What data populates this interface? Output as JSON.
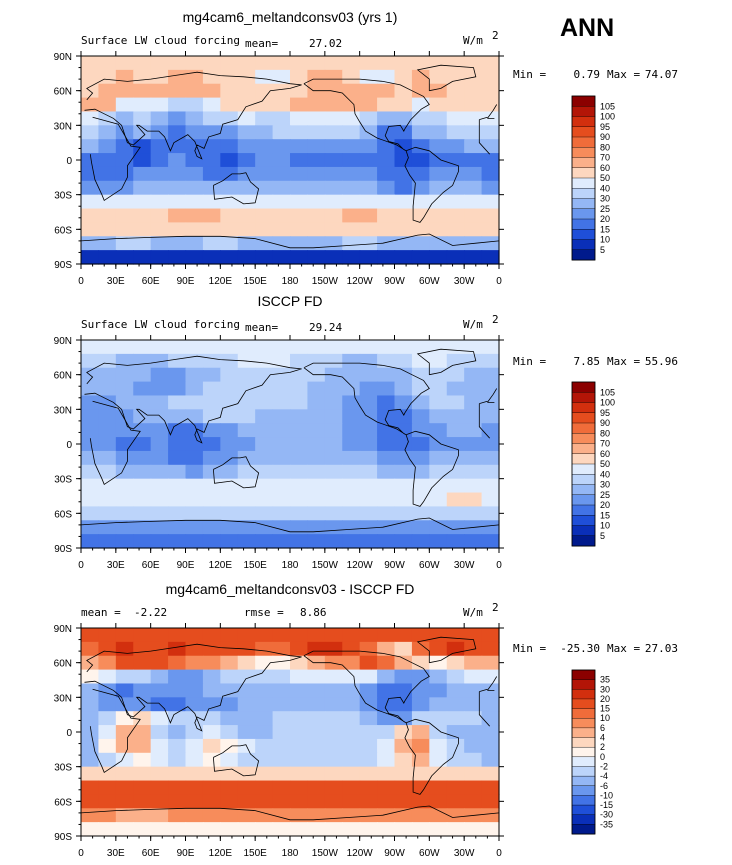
{
  "season_label": "ANN",
  "chart_data": [
    {
      "type": "heatmap",
      "title": "mg4cam6_meltandconsv03 (yrs 1)",
      "subtitle": "Surface LW cloud forcing",
      "mean_label": "mean=",
      "mean": "27.02",
      "units": "W/m",
      "units_exp": "2",
      "min_label": "Min =",
      "min": "0.79",
      "max_label": "Max =",
      "max": "74.07",
      "xticks": [
        "0",
        "30E",
        "60E",
        "90E",
        "120E",
        "150E",
        "180",
        "150W",
        "120W",
        "90W",
        "60W",
        "30W",
        "0"
      ],
      "yticks": [
        "90N",
        "60N",
        "30N",
        "0",
        "30S",
        "60S",
        "90S"
      ],
      "xlim": [
        0,
        360
      ],
      "ylim": [
        -90,
        90
      ],
      "levels": [
        "105",
        "100",
        "95",
        "90",
        "80",
        "70",
        "60",
        "50",
        "40",
        "30",
        "25",
        "20",
        "15",
        "10",
        "5"
      ],
      "colors": [
        "#8b0000",
        "#b31507",
        "#d22f0e",
        "#e54d1e",
        "#f06c3a",
        "#f78c5b",
        "#fbb08a",
        "#fdd7bf",
        "#e0ecfd",
        "#bcd4fa",
        "#94b7f5",
        "#6a97ee",
        "#4273e6",
        "#1f4fd8",
        "#0a2fb8",
        "#001a8c"
      ],
      "field": [
        [
          7,
          7,
          7,
          7,
          7,
          7,
          7,
          7,
          7,
          7,
          7,
          7,
          7,
          7,
          7,
          7,
          7,
          7,
          7,
          7,
          7,
          7,
          7,
          7
        ],
        [
          7,
          7,
          6,
          7,
          7,
          6,
          6,
          7,
          7,
          7,
          8,
          8,
          7,
          6,
          6,
          7,
          8,
          8,
          7,
          6,
          7,
          7,
          7,
          7
        ],
        [
          7,
          6,
          6,
          6,
          6,
          6,
          6,
          6,
          7,
          7,
          7,
          7,
          7,
          6,
          6,
          6,
          6,
          6,
          7,
          6,
          6,
          7,
          7,
          7
        ],
        [
          6,
          6,
          8,
          8,
          8,
          9,
          9,
          8,
          7,
          7,
          7,
          7,
          6,
          6,
          6,
          6,
          6,
          7,
          7,
          8,
          7,
          7,
          7,
          7
        ],
        [
          8,
          9,
          10,
          9,
          10,
          11,
          10,
          9,
          9,
          8,
          9,
          9,
          8,
          8,
          8,
          8,
          9,
          10,
          10,
          9,
          9,
          8,
          8,
          8
        ],
        [
          9,
          10,
          11,
          10,
          11,
          12,
          11,
          11,
          11,
          10,
          10,
          9,
          9,
          9,
          9,
          9,
          10,
          12,
          12,
          10,
          10,
          9,
          9,
          9
        ],
        [
          10,
          11,
          12,
          13,
          12,
          12,
          12,
          12,
          12,
          11,
          11,
          11,
          11,
          11,
          11,
          11,
          11,
          12,
          13,
          12,
          11,
          11,
          10,
          10
        ],
        [
          12,
          12,
          12,
          13,
          12,
          11,
          12,
          12,
          13,
          12,
          11,
          11,
          12,
          12,
          12,
          12,
          12,
          12,
          13,
          13,
          12,
          12,
          12,
          12
        ],
        [
          12,
          12,
          12,
          11,
          11,
          11,
          11,
          12,
          12,
          11,
          11,
          11,
          11,
          11,
          11,
          11,
          11,
          12,
          12,
          12,
          11,
          11,
          11,
          12
        ],
        [
          11,
          11,
          11,
          10,
          10,
          10,
          10,
          10,
          10,
          10,
          10,
          10,
          10,
          10,
          10,
          10,
          10,
          11,
          12,
          11,
          10,
          10,
          10,
          11
        ],
        [
          8,
          8,
          8,
          8,
          8,
          8,
          8,
          8,
          8,
          8,
          8,
          8,
          8,
          8,
          8,
          8,
          8,
          8,
          8,
          8,
          8,
          8,
          8,
          8
        ],
        [
          7,
          7,
          7,
          7,
          7,
          6,
          6,
          6,
          7,
          7,
          7,
          7,
          7,
          7,
          7,
          6,
          6,
          7,
          7,
          7,
          7,
          7,
          7,
          7
        ],
        [
          7,
          7,
          7,
          7,
          7,
          7,
          7,
          7,
          7,
          7,
          7,
          7,
          7,
          7,
          7,
          7,
          7,
          7,
          7,
          7,
          7,
          7,
          7,
          7
        ],
        [
          10,
          10,
          9,
          9,
          10,
          10,
          10,
          9,
          9,
          10,
          10,
          10,
          10,
          10,
          10,
          9,
          9,
          10,
          10,
          10,
          10,
          10,
          10,
          10
        ],
        [
          14,
          14,
          14,
          14,
          14,
          14,
          14,
          14,
          14,
          14,
          14,
          14,
          14,
          14,
          14,
          14,
          14,
          14,
          14,
          14,
          14,
          14,
          14,
          14
        ]
      ]
    },
    {
      "type": "heatmap",
      "title": "ISCCP FD",
      "subtitle": "Surface LW cloud forcing",
      "mean_label": "mean=",
      "mean": "29.24",
      "units": "W/m",
      "units_exp": "2",
      "min_label": "Min =",
      "min": "7.85",
      "max_label": "Max =",
      "max": "55.96",
      "xticks": [
        "0",
        "30E",
        "60E",
        "90E",
        "120E",
        "150E",
        "180",
        "150W",
        "120W",
        "90W",
        "60W",
        "30W",
        "0"
      ],
      "yticks": [
        "90N",
        "60N",
        "30N",
        "0",
        "30S",
        "60S",
        "90S"
      ],
      "xlim": [
        0,
        360
      ],
      "ylim": [
        -90,
        90
      ],
      "levels": [
        "105",
        "100",
        "95",
        "90",
        "80",
        "70",
        "60",
        "50",
        "40",
        "30",
        "25",
        "20",
        "15",
        "10",
        "5"
      ],
      "colors": [
        "#8b0000",
        "#b31507",
        "#d22f0e",
        "#e54d1e",
        "#f06c3a",
        "#f78c5b",
        "#fbb08a",
        "#fdd7bf",
        "#e0ecfd",
        "#bcd4fa",
        "#94b7f5",
        "#6a97ee",
        "#4273e6",
        "#1f4fd8",
        "#0a2fb8",
        "#001a8c"
      ],
      "field": [
        [
          8,
          8,
          8,
          8,
          8,
          8,
          8,
          8,
          8,
          8,
          8,
          8,
          8,
          8,
          8,
          8,
          8,
          8,
          8,
          8,
          8,
          8,
          8,
          8
        ],
        [
          9,
          9,
          10,
          10,
          10,
          9,
          9,
          9,
          9,
          8,
          8,
          8,
          9,
          9,
          9,
          10,
          10,
          9,
          9,
          8,
          8,
          9,
          9,
          9
        ],
        [
          10,
          10,
          10,
          10,
          11,
          11,
          10,
          10,
          9,
          9,
          9,
          9,
          9,
          9,
          10,
          10,
          10,
          10,
          10,
          9,
          9,
          9,
          10,
          10
        ],
        [
          10,
          10,
          10,
          11,
          11,
          11,
          10,
          9,
          9,
          9,
          9,
          9,
          9,
          10,
          10,
          10,
          11,
          11,
          10,
          9,
          9,
          10,
          10,
          10
        ],
        [
          11,
          11,
          10,
          10,
          10,
          9,
          9,
          9,
          9,
          9,
          9,
          9,
          9,
          10,
          10,
          11,
          11,
          12,
          11,
          10,
          9,
          9,
          10,
          10
        ],
        [
          11,
          11,
          11,
          10,
          10,
          10,
          10,
          9,
          9,
          9,
          10,
          10,
          10,
          10,
          10,
          11,
          11,
          12,
          12,
          11,
          10,
          10,
          10,
          10
        ],
        [
          11,
          11,
          11,
          11,
          11,
          12,
          12,
          11,
          11,
          10,
          10,
          10,
          10,
          10,
          10,
          11,
          11,
          12,
          12,
          11,
          11,
          10,
          10,
          11
        ],
        [
          11,
          11,
          12,
          12,
          11,
          12,
          12,
          12,
          11,
          11,
          10,
          10,
          10,
          10,
          10,
          11,
          11,
          12,
          12,
          12,
          11,
          11,
          11,
          11
        ],
        [
          10,
          10,
          11,
          11,
          11,
          12,
          12,
          11,
          11,
          10,
          10,
          10,
          10,
          10,
          10,
          10,
          10,
          11,
          11,
          11,
          10,
          10,
          10,
          10
        ],
        [
          9,
          9,
          10,
          10,
          10,
          10,
          11,
          10,
          10,
          9,
          9,
          9,
          9,
          9,
          9,
          9,
          9,
          10,
          10,
          10,
          9,
          9,
          9,
          9
        ],
        [
          8,
          8,
          8,
          8,
          8,
          8,
          8,
          8,
          8,
          8,
          8,
          8,
          8,
          8,
          8,
          8,
          8,
          8,
          8,
          8,
          8,
          8,
          8,
          8
        ],
        [
          8,
          8,
          8,
          8,
          8,
          8,
          8,
          8,
          8,
          8,
          8,
          8,
          8,
          8,
          8,
          8,
          8,
          8,
          8,
          8,
          8,
          7,
          7,
          8
        ],
        [
          9,
          9,
          9,
          9,
          9,
          9,
          9,
          9,
          9,
          9,
          9,
          9,
          9,
          9,
          9,
          9,
          9,
          9,
          9,
          9,
          9,
          9,
          9,
          9
        ],
        [
          11,
          11,
          11,
          11,
          11,
          11,
          11,
          11,
          11,
          11,
          11,
          11,
          11,
          11,
          11,
          11,
          11,
          11,
          11,
          11,
          11,
          11,
          11,
          11
        ],
        [
          12,
          12,
          12,
          12,
          12,
          12,
          12,
          12,
          12,
          12,
          12,
          12,
          12,
          12,
          12,
          12,
          12,
          12,
          12,
          12,
          12,
          12,
          12,
          12
        ]
      ]
    },
    {
      "type": "heatmap",
      "title": "mg4cam6_meltandconsv03 - ISCCP FD",
      "mean_label": "mean =",
      "mean": "-2.22",
      "rmse_label": "rmse =",
      "rmse": "8.86",
      "units": "W/m",
      "units_exp": "2",
      "min_label": "Min =",
      "min": "-25.30",
      "max_label": "Max =",
      "max": "27.03",
      "xticks": [
        "0",
        "30E",
        "60E",
        "90E",
        "120E",
        "150E",
        "180",
        "150W",
        "120W",
        "90W",
        "60W",
        "30W",
        "0"
      ],
      "yticks": [
        "90N",
        "60N",
        "30N",
        "0",
        "30S",
        "60S",
        "90S"
      ],
      "xlim": [
        0,
        360
      ],
      "ylim": [
        -90,
        90
      ],
      "levels": [
        "35",
        "30",
        "20",
        "15",
        "10",
        "6",
        "4",
        "2",
        "0",
        "-2",
        "-4",
        "-6",
        "-10",
        "-15",
        "-30",
        "-35"
      ],
      "colors": [
        "#8b0000",
        "#b31507",
        "#d22f0e",
        "#e54d1e",
        "#f06c3a",
        "#f78c5b",
        "#fbb08a",
        "#fdd7bf",
        "#fff4ec",
        "#e0ecfd",
        "#bcd4fa",
        "#94b7f5",
        "#6a97ee",
        "#4273e6",
        "#1f4fd8",
        "#0a2fb8",
        "#001a8c"
      ],
      "field": [
        [
          3,
          3,
          3,
          3,
          3,
          3,
          3,
          3,
          3,
          3,
          3,
          3,
          3,
          3,
          3,
          3,
          3,
          3,
          3,
          3,
          3,
          3,
          3,
          3
        ],
        [
          4,
          3,
          2,
          3,
          3,
          2,
          3,
          3,
          3,
          3,
          4,
          4,
          3,
          2,
          2,
          3,
          4,
          6,
          7,
          4,
          3,
          2,
          3,
          3
        ],
        [
          6,
          5,
          3,
          3,
          3,
          4,
          5,
          5,
          6,
          7,
          8,
          8,
          7,
          6,
          5,
          5,
          3,
          4,
          6,
          7,
          8,
          7,
          6,
          6
        ],
        [
          8,
          9,
          10,
          10,
          11,
          12,
          12,
          11,
          10,
          10,
          10,
          10,
          9,
          9,
          9,
          9,
          9,
          11,
          12,
          12,
          11,
          10,
          9,
          9
        ],
        [
          11,
          12,
          13,
          12,
          12,
          12,
          12,
          11,
          11,
          11,
          11,
          11,
          11,
          11,
          11,
          11,
          12,
          13,
          13,
          12,
          12,
          11,
          11,
          11
        ],
        [
          11,
          12,
          12,
          12,
          13,
          13,
          12,
          12,
          12,
          11,
          11,
          11,
          11,
          11,
          11,
          11,
          12,
          13,
          13,
          12,
          11,
          11,
          11,
          11
        ],
        [
          11,
          10,
          8,
          7,
          9,
          10,
          10,
          10,
          11,
          11,
          11,
          10,
          10,
          10,
          10,
          10,
          11,
          12,
          12,
          10,
          10,
          10,
          10,
          11
        ],
        [
          11,
          9,
          6,
          6,
          10,
          11,
          10,
          9,
          10,
          11,
          11,
          10,
          10,
          10,
          10,
          10,
          10,
          10,
          7,
          6,
          10,
          11,
          11,
          11
        ],
        [
          11,
          8,
          6,
          6,
          9,
          10,
          9,
          7,
          8,
          9,
          10,
          10,
          10,
          10,
          10,
          10,
          10,
          9,
          6,
          5,
          9,
          10,
          11,
          11
        ],
        [
          11,
          10,
          9,
          8,
          9,
          10,
          9,
          8,
          9,
          10,
          10,
          10,
          10,
          10,
          10,
          10,
          10,
          9,
          7,
          6,
          9,
          10,
          10,
          11
        ],
        [
          7,
          7,
          7,
          7,
          7,
          7,
          7,
          7,
          7,
          7,
          7,
          7,
          7,
          7,
          7,
          7,
          7,
          7,
          7,
          7,
          7,
          7,
          7,
          7
        ],
        [
          3,
          3,
          3,
          3,
          3,
          3,
          3,
          3,
          3,
          3,
          3,
          3,
          3,
          3,
          3,
          3,
          3,
          3,
          3,
          3,
          3,
          3,
          3,
          3
        ],
        [
          3,
          3,
          3,
          3,
          3,
          3,
          3,
          3,
          3,
          3,
          3,
          3,
          3,
          3,
          3,
          3,
          3,
          3,
          3,
          3,
          3,
          3,
          3,
          3
        ],
        [
          5,
          5,
          6,
          6,
          6,
          5,
          5,
          5,
          5,
          5,
          5,
          5,
          5,
          5,
          5,
          5,
          5,
          5,
          5,
          5,
          5,
          5,
          5,
          5
        ],
        [
          8,
          8,
          8,
          8,
          8,
          8,
          8,
          8,
          8,
          8,
          8,
          8,
          8,
          8,
          8,
          8,
          8,
          8,
          8,
          8,
          8,
          8,
          8,
          8
        ]
      ]
    }
  ]
}
